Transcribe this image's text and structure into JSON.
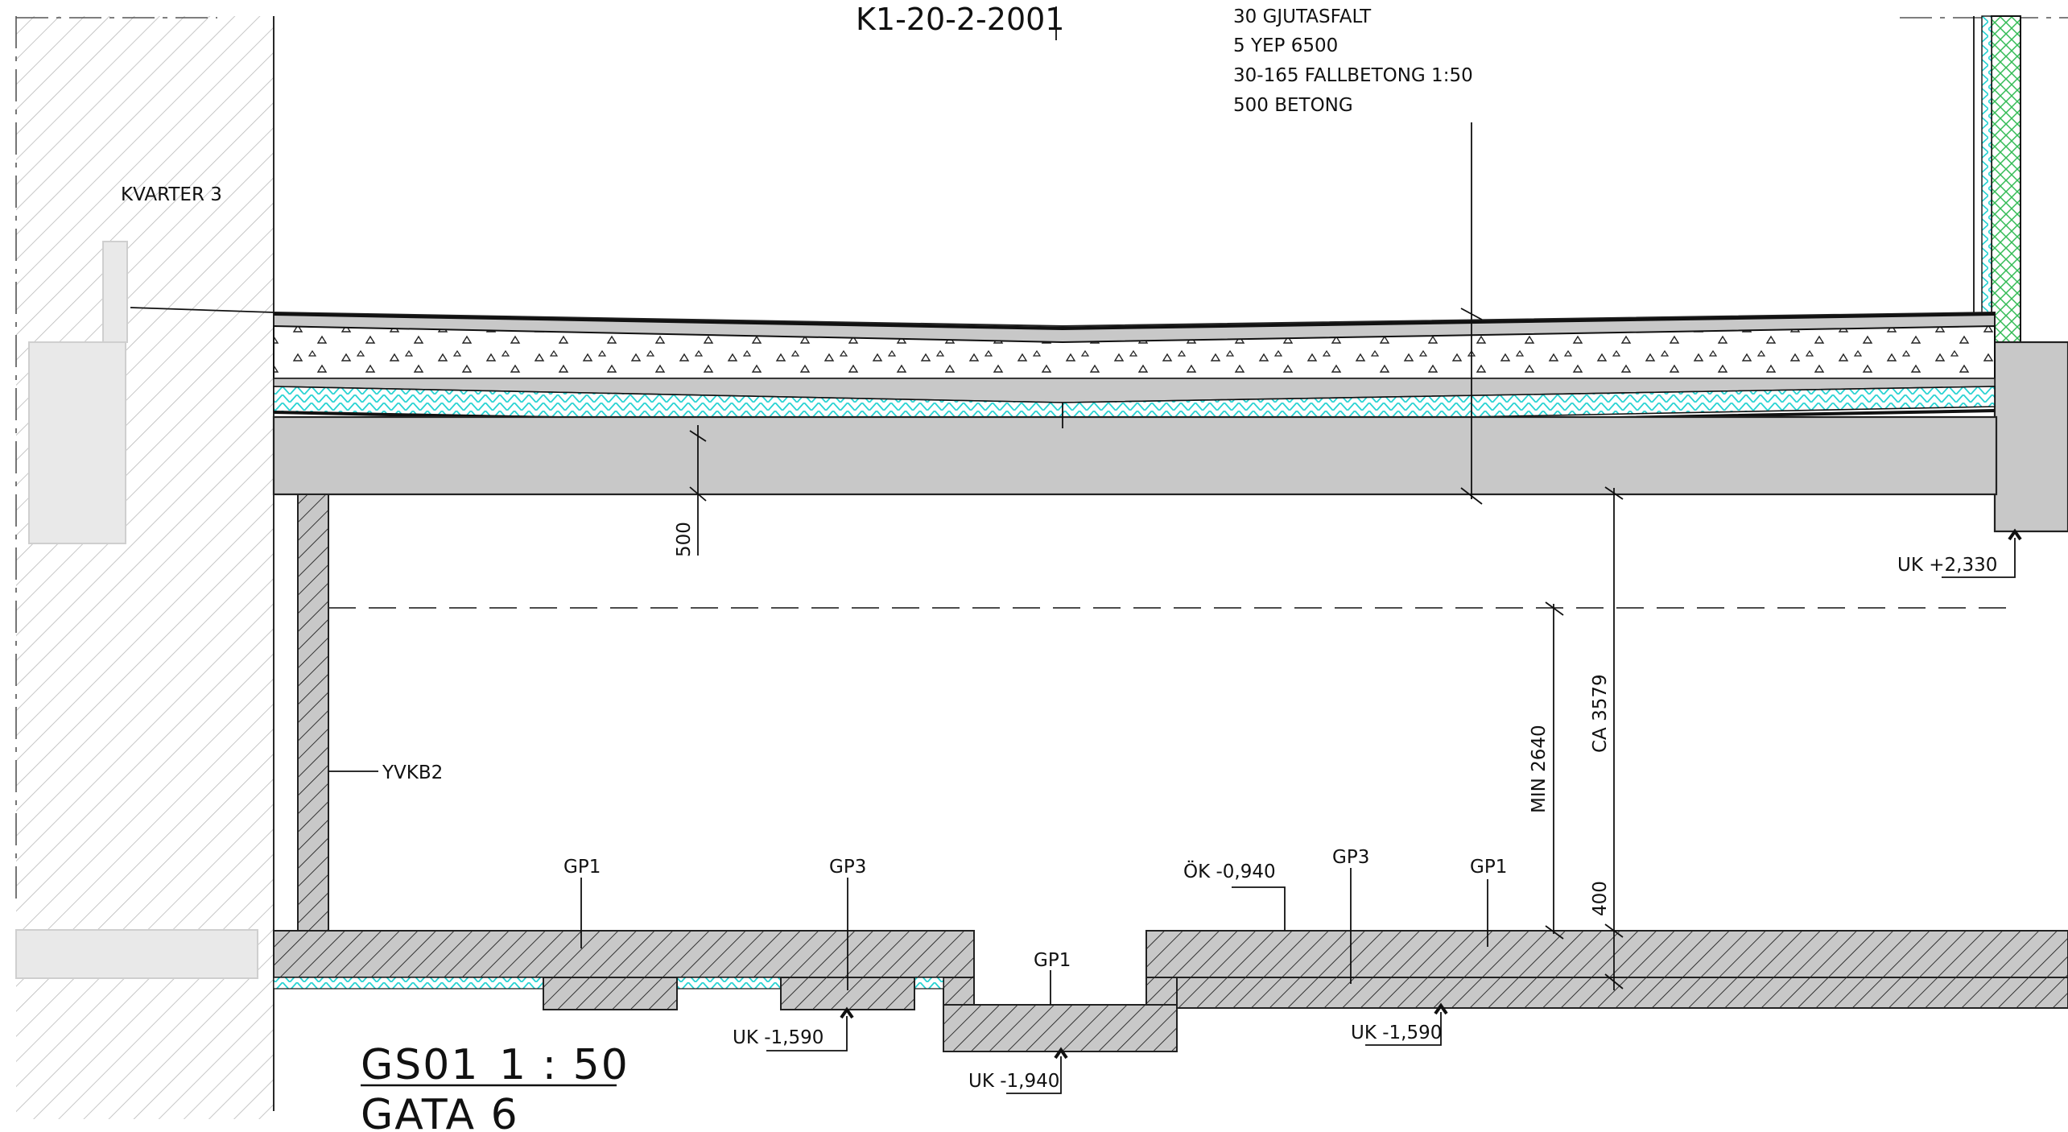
{
  "drawing": {
    "ref_number": "K1-20-2-2001",
    "title_code": "GS01",
    "title_scale": "1 : 50",
    "title_name": "GATA 6"
  },
  "layers": [
    "30 GJUTASFALT",
    "5 YEP 6500",
    "30-165 FALLBETONG 1:50",
    "500 BETONG"
  ],
  "labels": {
    "kvarter": "KVARTER 3",
    "wall": "YVKB2",
    "gp1_a": "GP1",
    "gp3_a": "GP3",
    "gp1_b": "GP1",
    "gp3_b": "GP3",
    "gp1_c": "GP1",
    "ok_level": "ÖK -0,940"
  },
  "levels": {
    "uk_right": "UK +2,330",
    "uk_left": "UK -1,590",
    "uk_mid": "UK -1,940",
    "uk_right_low": "UK -1,590"
  },
  "dimensions": {
    "slab": "500",
    "min_height": "MIN 2640",
    "ca_height": "CA 3579",
    "base": "400"
  },
  "colors": {
    "line": "#111111",
    "concrete": "#c8c8c8",
    "insulation": "#29d3d3",
    "green_layer": "#33bb55",
    "hatch": "#222222"
  }
}
